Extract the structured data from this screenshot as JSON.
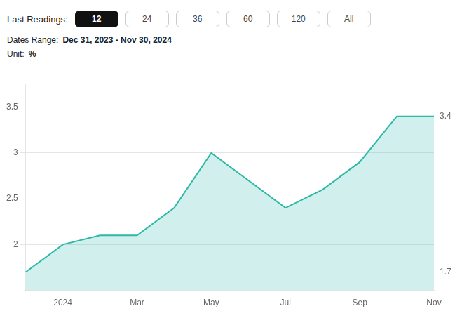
{
  "chart_data": {
    "type": "line",
    "title": "Last Readings:",
    "buttons": [
      "12",
      "24",
      "36",
      "60",
      "120",
      "All"
    ],
    "active_button": "12",
    "info": [
      {
        "label": "Dates Range:",
        "value": "Dec 31, 2023 - Nov 30, 2024"
      },
      {
        "label": "Unit:",
        "value": "%"
      }
    ],
    "categories": [
      null,
      "2024",
      null,
      "Mar",
      null,
      "May",
      null,
      "Jul",
      null,
      "Sep",
      null,
      "Nov"
    ],
    "values": [
      1.7,
      2.0,
      2.1,
      2.1,
      2.4,
      3.0,
      2.7,
      2.4,
      2.6,
      2.9,
      3.4,
      3.4
    ],
    "color": "#2db8a8",
    "ylim": [
      1.5,
      3.75
    ],
    "yticks": [
      2,
      2.5,
      3,
      3.5
    ],
    "grid": "y",
    "annotations": [
      {
        "text": "3.4",
        "y": 3.4
      },
      {
        "text": "1.7",
        "y": 1.7
      }
    ]
  }
}
